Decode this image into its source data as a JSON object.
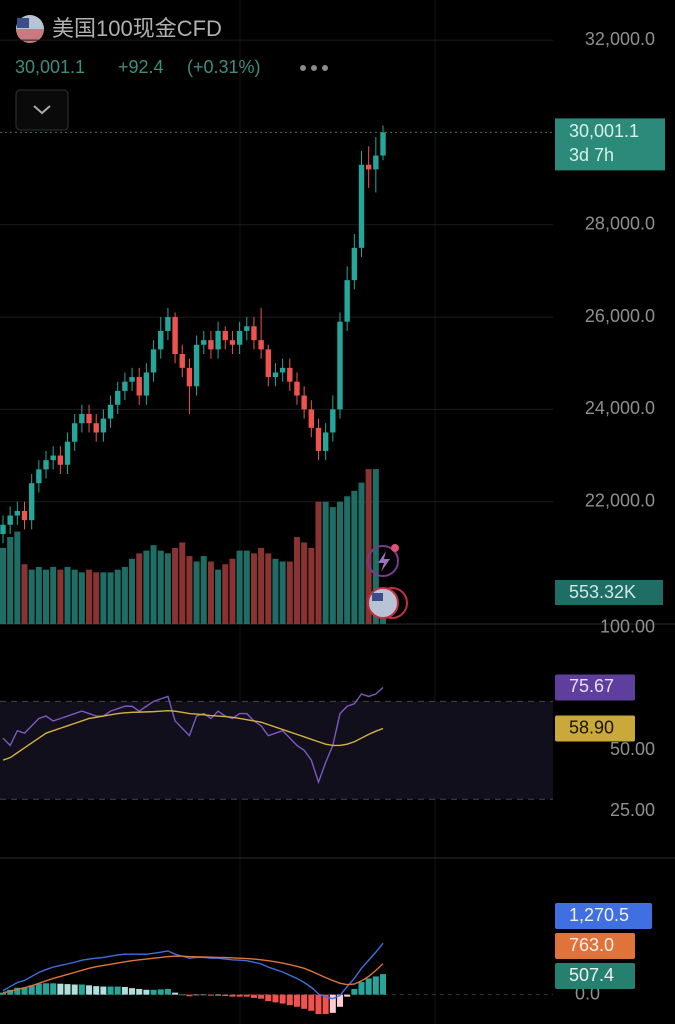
{
  "header": {
    "symbol": "美国100现金CFD",
    "price": "30,001.1",
    "change": "+92.4",
    "change_pct": "(+0.31%)"
  },
  "chart_data": [
    {
      "type": "candlestick",
      "open": [
        21300,
        21500,
        21700,
        21800,
        21600,
        22400,
        22700,
        22900,
        23000,
        22800,
        23300,
        23700,
        23900,
        23700,
        23500,
        23800,
        24100,
        24400,
        24600,
        24700,
        24300,
        24800,
        25300,
        25700,
        26000,
        25200,
        24900,
        24500,
        25400,
        25500,
        25300,
        25700,
        25500,
        25400,
        25700,
        25800,
        25500,
        25300,
        24700,
        24800,
        24900,
        24600,
        24300,
        24000,
        23600,
        23100,
        23500,
        24000,
        25900,
        26800,
        27500,
        29300,
        29200,
        29500
      ],
      "high": [
        21700,
        21900,
        22000,
        22000,
        22600,
        22900,
        23100,
        23200,
        23200,
        23500,
        23900,
        24100,
        24100,
        23900,
        24000,
        24300,
        24600,
        24800,
        24900,
        24900,
        25000,
        25500,
        26000,
        26200,
        26100,
        25400,
        25100,
        25600,
        25700,
        25700,
        25900,
        25800,
        25700,
        25900,
        26000,
        26000,
        26200,
        25400,
        25000,
        25100,
        25100,
        24800,
        24500,
        24200,
        23800,
        23700,
        24300,
        26100,
        27100,
        27800,
        29600,
        29700,
        29900,
        30150
      ],
      "low": [
        21100,
        21300,
        21500,
        21400,
        21400,
        22200,
        22500,
        22700,
        22600,
        22600,
        23100,
        23500,
        23500,
        23300,
        23300,
        23600,
        23900,
        24200,
        24400,
        24100,
        24100,
        24600,
        25100,
        25500,
        25000,
        24700,
        23900,
        24300,
        25200,
        25100,
        25100,
        25300,
        25200,
        25200,
        25500,
        25300,
        25100,
        24500,
        24500,
        24600,
        24400,
        24100,
        23800,
        23400,
        22900,
        22900,
        23300,
        23800,
        25700,
        26600,
        27300,
        28800,
        28700,
        29400
      ],
      "close": [
        21500,
        21700,
        21800,
        21600,
        22400,
        22700,
        22900,
        23000,
        22800,
        23300,
        23700,
        23900,
        23700,
        23500,
        23800,
        24100,
        24400,
        24600,
        24700,
        24300,
        24800,
        25300,
        25700,
        26000,
        25200,
        24900,
        24500,
        25400,
        25500,
        25300,
        25700,
        25500,
        25400,
        25700,
        25800,
        25500,
        25300,
        24700,
        24800,
        24900,
        24600,
        24300,
        24000,
        23600,
        23100,
        23500,
        24000,
        25900,
        26800,
        27500,
        29300,
        29200,
        29500,
        30001.1
      ],
      "up_color": "#26a69a",
      "down_color": "#ef5350",
      "ylim": [
        19350,
        32870
      ],
      "yticks": [
        {
          "value": 32000,
          "label": "32,000.0"
        },
        {
          "value": 28000,
          "label": "28,000.0"
        },
        {
          "value": 26000,
          "label": "26,000.0"
        },
        {
          "value": 24000,
          "label": "24,000.0"
        },
        {
          "value": 22000,
          "label": "22,000.0"
        }
      ],
      "grid": true,
      "last_label": "30,001.1",
      "countdown": "3d 7h"
    },
    {
      "type": "volume",
      "values": [
        1400,
        1600,
        1700,
        1100,
        1000,
        1050,
        1000,
        1050,
        1000,
        1050,
        1000,
        950,
        1000,
        950,
        950,
        950,
        1000,
        1050,
        1200,
        1300,
        1350,
        1450,
        1350,
        1300,
        1400,
        1500,
        1250,
        1150,
        1250,
        1150,
        1000,
        1100,
        1200,
        1350,
        1350,
        1300,
        1400,
        1300,
        1200,
        1150,
        1150,
        1600,
        1500,
        1400,
        2250,
        2250,
        2150,
        2250,
        2350,
        2450,
        2600,
        2850,
        2850,
        553.32
      ],
      "up_color": "#1e6e66",
      "down_color": "#8a3333",
      "ylim": [
        0,
        11480
      ],
      "last_label": "553.32K"
    },
    {
      "type": "rsi",
      "ylim": [
        6,
        101.6
      ],
      "yticks": [
        {
          "value": 100,
          "label": "100.00"
        },
        {
          "value": 50,
          "label": "50.00"
        },
        {
          "value": 25,
          "label": "25.00"
        }
      ],
      "band": [
        30,
        70
      ],
      "series": [
        {
          "color": "#7e57c2",
          "label_color": "#5e3f9e",
          "last_label": "75.67",
          "values": [
            55,
            52,
            58,
            57,
            60,
            63,
            64,
            62,
            63,
            64,
            65,
            66,
            65,
            64,
            64,
            66,
            67,
            68,
            68,
            66,
            68,
            70,
            71,
            72,
            62,
            59,
            56,
            64,
            65,
            63,
            66,
            64,
            63,
            65,
            65,
            62,
            60,
            56,
            57,
            58,
            55,
            52,
            50,
            46,
            37,
            45,
            52,
            65,
            68,
            69,
            73,
            72,
            73,
            75.67
          ]
        },
        {
          "color": "#d4b13c",
          "label_color": "#c9a93a",
          "last_label": "58.90",
          "values": [
            46,
            47,
            49,
            51,
            53,
            55,
            57,
            58,
            59,
            60,
            61,
            62,
            63,
            63.5,
            64,
            64.5,
            65,
            65.3,
            65.5,
            65.6,
            65.7,
            65.8,
            66,
            66.2,
            66,
            65.5,
            65,
            64.8,
            64.5,
            64.2,
            64,
            63.8,
            63.5,
            63,
            62.5,
            62,
            61.5,
            60.5,
            59.5,
            58.5,
            57.5,
            56.5,
            55.5,
            54.5,
            53.5,
            52.5,
            52,
            52,
            52.5,
            53.5,
            55,
            56.5,
            57.8,
            58.9
          ]
        }
      ]
    },
    {
      "type": "macd",
      "ylim": [
        -725,
        3375
      ],
      "yticks": [
        {
          "value": 0,
          "label": "0.0"
        }
      ],
      "series": [
        {
          "color": "#3f6fe0",
          "last_label": "1,270.5",
          "values": [
            100,
            200,
            300,
            350,
            450,
            550,
            620,
            680,
            720,
            760,
            800,
            850,
            880,
            900,
            920,
            950,
            980,
            1000,
            1000,
            1000,
            1000,
            1020,
            1050,
            1080,
            1000,
            950,
            900,
            920,
            920,
            900,
            900,
            880,
            860,
            850,
            840,
            800,
            760,
            680,
            620,
            560,
            480,
            400,
            300,
            180,
            20,
            -60,
            -100,
            -20,
            200,
            400,
            650,
            850,
            1050,
            1270.5
          ]
        },
        {
          "color": "#e0733a",
          "last_label": "763.0",
          "values": [
            50,
            80,
            130,
            170,
            220,
            280,
            340,
            400,
            450,
            500,
            550,
            600,
            650,
            690,
            720,
            750,
            780,
            810,
            840,
            860,
            880,
            900,
            920,
            940,
            950,
            950,
            940,
            935,
            930,
            925,
            920,
            915,
            910,
            900,
            890,
            880,
            860,
            840,
            810,
            780,
            740,
            700,
            650,
            580,
            500,
            420,
            350,
            280,
            250,
            260,
            340,
            450,
            600,
            763.0
          ]
        }
      ],
      "histogram": {
        "color": "#26a69a",
        "last_label": "507.4",
        "values": [
          50,
          120,
          170,
          180,
          230,
          270,
          280,
          280,
          270,
          260,
          250,
          250,
          230,
          210,
          200,
          200,
          200,
          190,
          160,
          140,
          120,
          120,
          130,
          140,
          50,
          0,
          -40,
          -15,
          -10,
          -25,
          -20,
          -35,
          -50,
          -50,
          -50,
          -80,
          -100,
          -160,
          -190,
          -220,
          -260,
          -300,
          -350,
          -400,
          -480,
          -480,
          -450,
          -300,
          -50,
          140,
          310,
          400,
          450,
          507.4
        ],
        "colors": {
          "pos_up": "#26a69a",
          "pos_down": "#b2dfdb",
          "neg_down": "#ef5350",
          "neg_up": "#ffcdd2"
        }
      }
    }
  ]
}
